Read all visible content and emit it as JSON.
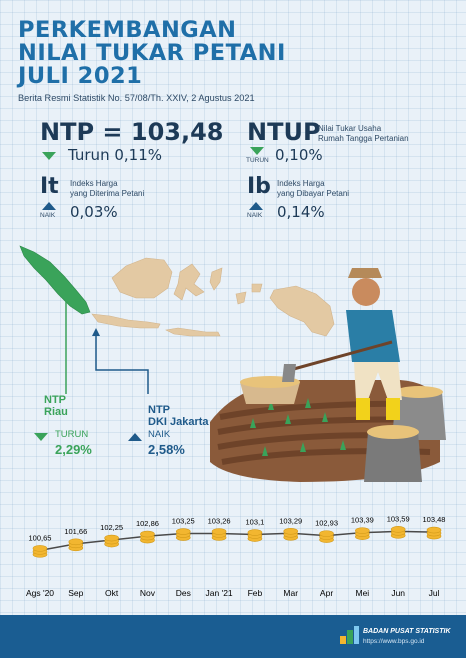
{
  "header": {
    "title_line1": "PERKEMBANGAN",
    "title_line2": "NILAI TUKAR PETANI",
    "title_line3": "JULI 2021",
    "subtitle": "Berita Resmi Statistik No. 57/08/Th. XXIV, 2 Agustus 2021"
  },
  "ntp": {
    "label": "NTP = 103,48",
    "status": "Turun",
    "change": "0,11%"
  },
  "ntup": {
    "label": "NTUP",
    "desc_line1": "Nilai Tukar Usaha",
    "desc_line2": "Rumah Tangga Pertanian",
    "status": "TURUN",
    "change": "0,10%"
  },
  "it": {
    "label": "It",
    "desc_line1": "Indeks Harga",
    "desc_line2": "yang Diterima Petani",
    "status": "NAIK",
    "change": "0,03%"
  },
  "ib": {
    "label": "Ib",
    "desc_line1": "Indeks Harga",
    "desc_line2": "yang Dibayar Petani",
    "status": "NAIK",
    "change": "0,14%"
  },
  "riau": {
    "name_line1": "NTP",
    "name_line2": "Riau",
    "status": "TURUN",
    "change": "2,29%"
  },
  "jakarta": {
    "name_line1": "NTP",
    "name_line2": "DKI Jakarta",
    "status": "NAIK",
    "change": "2,58%"
  },
  "colors": {
    "title": "#1f6fa8",
    "down": "#3aa35a",
    "up": "#1f5a8a",
    "footer": "#1a5d92",
    "coin": "#f2b630"
  },
  "chart_data": {
    "type": "line",
    "categories": [
      "Ags '20",
      "Sep",
      "Okt",
      "Nov",
      "Des",
      "Jan '21",
      "Feb",
      "Mar",
      "Apr",
      "Mei",
      "Jun",
      "Jul"
    ],
    "values": [
      100.65,
      101.66,
      102.25,
      102.86,
      103.25,
      103.26,
      103.1,
      103.29,
      102.93,
      103.39,
      103.59,
      103.48
    ],
    "value_labels": [
      "100,65",
      "101,66",
      "102,25",
      "102,86",
      "103,25",
      "103,26",
      "103,1",
      "103,29",
      "102,93",
      "103,39",
      "103,59",
      "103,48"
    ]
  },
  "footer": {
    "org": "BADAN PUSAT STATISTIK",
    "url": "https://www.bps.go.id"
  }
}
